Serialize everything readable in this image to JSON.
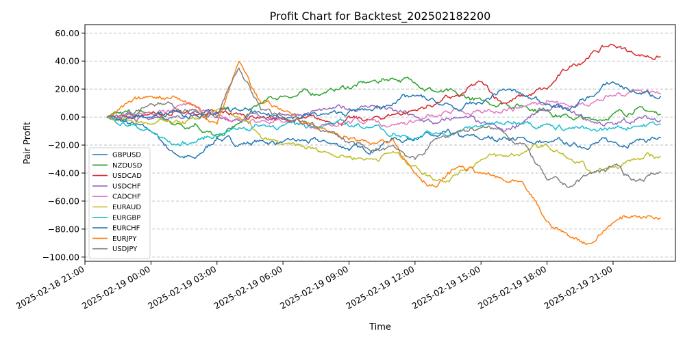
{
  "chart_data": {
    "type": "line",
    "title": "Profit Chart for Backtest_202502182200",
    "xlabel": "Time",
    "ylabel": "Pair Profit",
    "x_start": "2025-02-18 21:00",
    "x_end": "2025-02-19 23:50",
    "x_ticks": [
      "2025-02-18 21:00",
      "2025-02-19 00:00",
      "2025-02-19 03:00",
      "2025-02-19 06:00",
      "2025-02-19 09:00",
      "2025-02-19 12:00",
      "2025-02-19 15:00",
      "2025-02-19 18:00",
      "2025-02-19 21:00"
    ],
    "ylim": [
      -103,
      66
    ],
    "y_ticks": [
      "60.00",
      "40.00",
      "20.00",
      "0.00",
      "−20.00",
      "−40.00",
      "−60.00",
      "−80.00",
      "−100.00"
    ],
    "grid": true,
    "legend_position": "lower-left",
    "x": [
      "2025-02-18 22:00",
      "2025-02-19 00:00",
      "2025-02-19 01:00",
      "2025-02-19 02:00",
      "2025-02-19 03:00",
      "2025-02-19 04:00",
      "2025-02-19 05:00",
      "2025-02-19 06:00",
      "2025-02-19 08:00",
      "2025-02-19 10:00",
      "2025-02-19 11:00",
      "2025-02-19 12:00",
      "2025-02-19 13:00",
      "2025-02-19 14:00",
      "2025-02-19 15:00",
      "2025-02-19 16:00",
      "2025-02-19 17:00",
      "2025-02-19 18:00",
      "2025-02-19 19:00",
      "2025-02-19 20:00",
      "2025-02-19 21:00",
      "2025-02-19 22:00",
      "2025-02-19 23:10"
    ],
    "series": [
      {
        "name": "GBPUSD",
        "color": "#1f77b4",
        "values": [
          0,
          -10,
          -25,
          -30,
          -15,
          -20,
          -17,
          -18,
          -18,
          -25,
          -15,
          -15,
          -14,
          -13,
          -16,
          -15,
          -16,
          -18,
          -20,
          -20,
          -18,
          -17,
          -15
        ]
      },
      {
        "name": "NZDUSD",
        "color": "#2ca02c",
        "values": [
          0,
          3,
          -5,
          -5,
          -15,
          -5,
          10,
          15,
          18,
          25,
          28,
          25,
          18,
          15,
          12,
          10,
          8,
          5,
          0,
          -2,
          2,
          5,
          2
        ]
      },
      {
        "name": "USDCAD",
        "color": "#d62728",
        "values": [
          0,
          2,
          3,
          2,
          3,
          2,
          0,
          -2,
          -3,
          -2,
          2,
          5,
          10,
          15,
          25,
          10,
          15,
          20,
          35,
          45,
          52,
          45,
          43
        ]
      },
      {
        "name": "USDCHF",
        "color": "#9467bd",
        "values": [
          0,
          -2,
          0,
          5,
          0,
          -2,
          0,
          2,
          5,
          8,
          5,
          0,
          -5,
          0,
          -5,
          -10,
          -2,
          5,
          5,
          -3,
          -5,
          -2,
          -2
        ]
      },
      {
        "name": "CADCHF",
        "color": "#e377c2",
        "values": [
          0,
          2,
          5,
          8,
          2,
          -2,
          -3,
          -4,
          -5,
          -2,
          -5,
          -3,
          0,
          5,
          3,
          5,
          8,
          12,
          8,
          10,
          15,
          20,
          17
        ]
      },
      {
        "name": "EURAUD",
        "color": "#bcbd22",
        "values": [
          0,
          -5,
          -5,
          -2,
          5,
          0,
          -15,
          -20,
          -25,
          -30,
          -25,
          -35,
          -45,
          -40,
          -30,
          -28,
          -25,
          -20,
          -30,
          -40,
          -35,
          -30,
          -28
        ]
      },
      {
        "name": "EURGBP",
        "color": "#17becf",
        "values": [
          0,
          -10,
          -20,
          -18,
          -12,
          -8,
          -6,
          -6,
          -5,
          -7,
          -12,
          -15,
          -12,
          -10,
          -6,
          -5,
          -3,
          -5,
          -8,
          -10,
          -8,
          -6,
          -5
        ]
      },
      {
        "name": "EURCHF",
        "color": "#1f77b4",
        "values": [
          0,
          0,
          5,
          2,
          3,
          5,
          2,
          0,
          2,
          5,
          10,
          15,
          10,
          5,
          10,
          20,
          15,
          10,
          5,
          15,
          25,
          18,
          15
        ]
      },
      {
        "name": "EURJPY",
        "color": "#ff7f0e",
        "values": [
          0,
          15,
          15,
          8,
          -5,
          40,
          10,
          5,
          -10,
          -20,
          -15,
          -40,
          -50,
          -35,
          -40,
          -45,
          -50,
          -75,
          -85,
          -90,
          -75,
          -70,
          -72
        ]
      },
      {
        "name": "USDJPY",
        "color": "#7f7f7f",
        "values": [
          0,
          10,
          8,
          5,
          0,
          35,
          5,
          0,
          -10,
          -25,
          -20,
          -30,
          -15,
          -10,
          -8,
          -10,
          -20,
          -45,
          -50,
          -40,
          -35,
          -45,
          -39
        ]
      }
    ]
  }
}
